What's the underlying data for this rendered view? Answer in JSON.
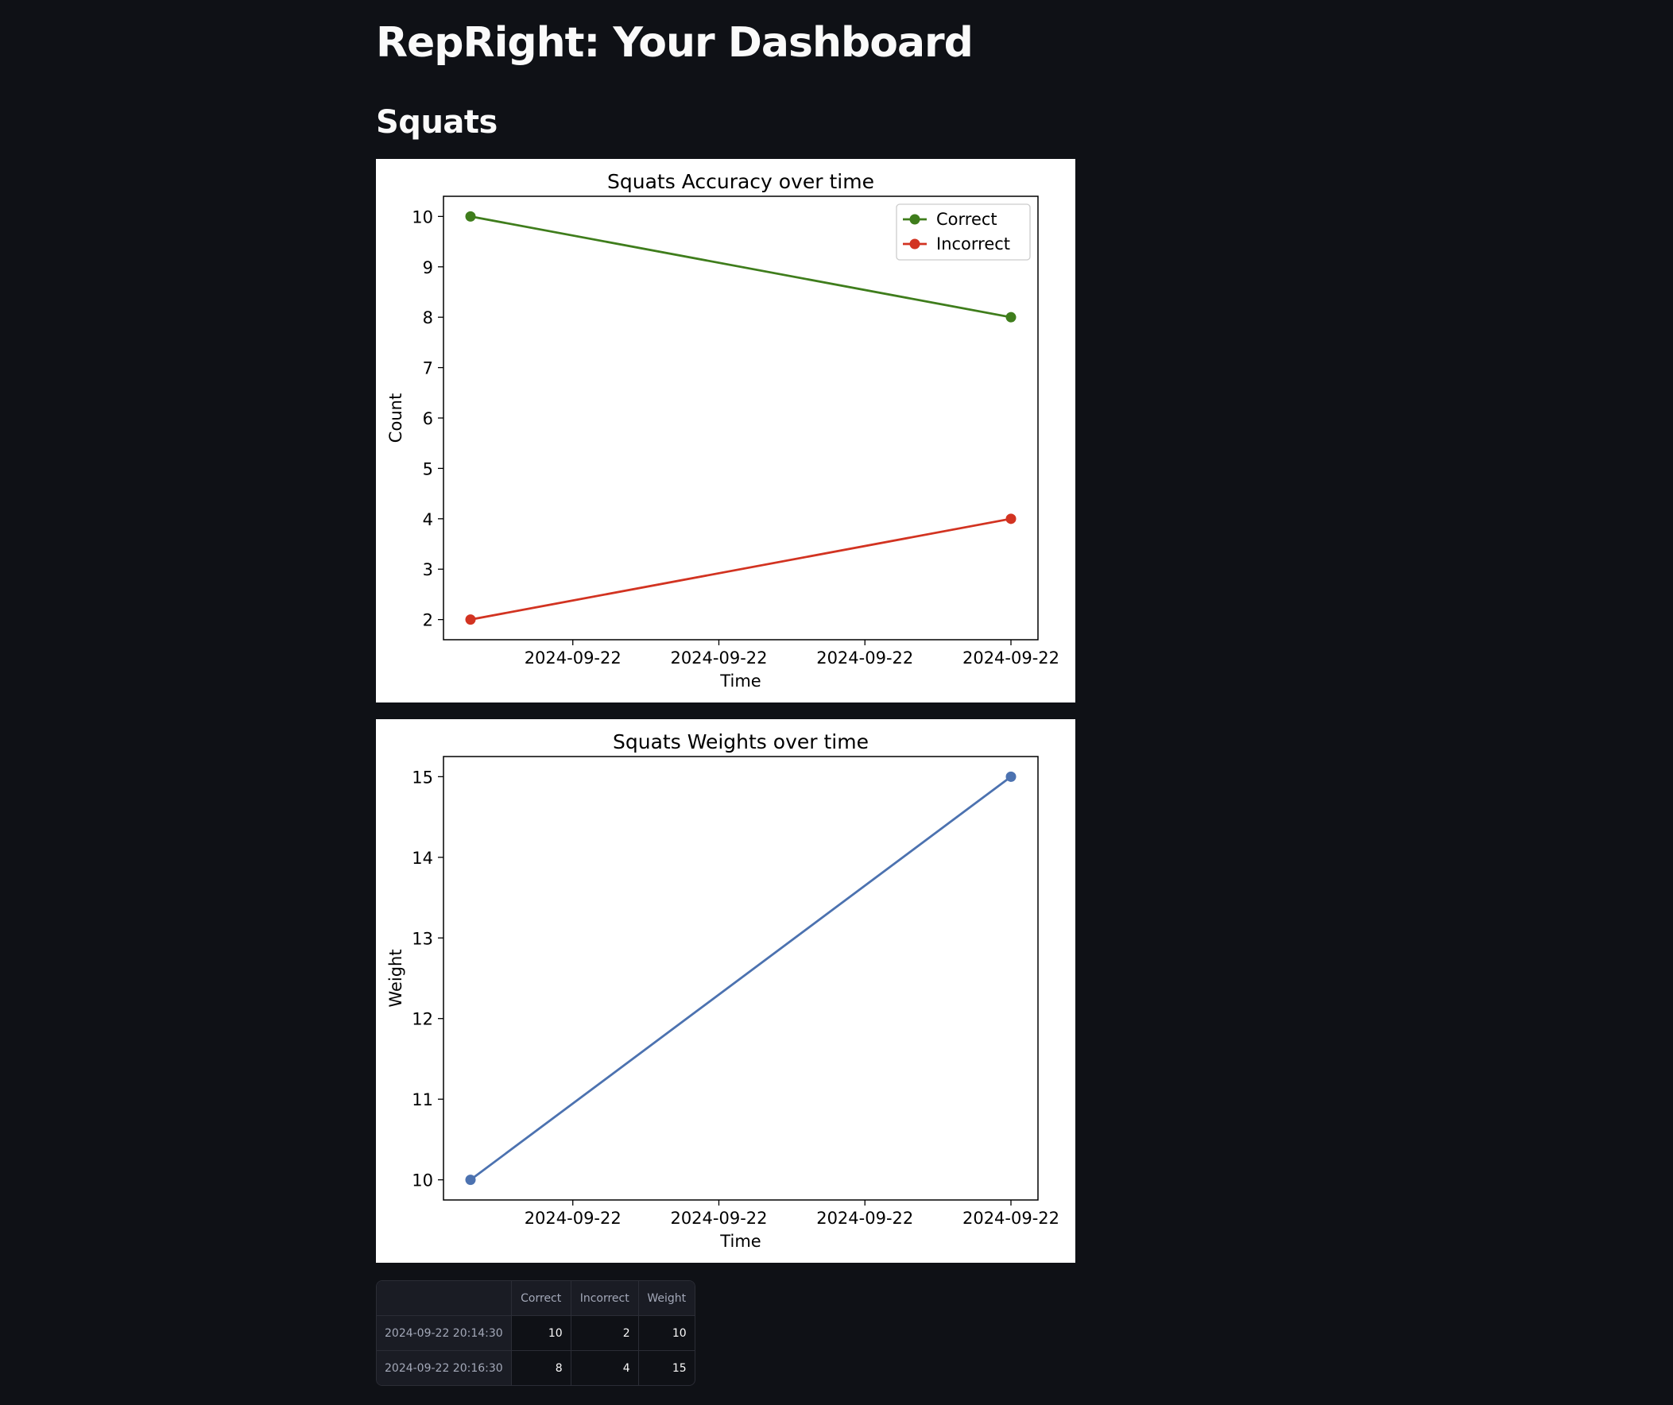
{
  "page": {
    "title": "RepRight: Your Dashboard",
    "section_title": "Squats"
  },
  "chart_data": [
    {
      "type": "line",
      "title": "Squats Accuracy over time",
      "xlabel": "Time",
      "ylabel": "Count",
      "x": [
        "2024-09-22 20:14:30",
        "2024-09-22 20:16:30"
      ],
      "x_tick_labels": [
        "2024-09-22",
        "2024-09-22",
        "2024-09-22",
        "2024-09-22"
      ],
      "y_ticks": [
        2,
        3,
        4,
        5,
        6,
        7,
        8,
        9,
        10
      ],
      "ylim": [
        1.6,
        10.4
      ],
      "grid": false,
      "legend": "top-right",
      "series": [
        {
          "name": "Correct",
          "values": [
            10,
            8
          ],
          "color": "#3f7d1c",
          "marker": "circle"
        },
        {
          "name": "Incorrect",
          "values": [
            2,
            4
          ],
          "color": "#d23321",
          "marker": "circle"
        }
      ]
    },
    {
      "type": "line",
      "title": "Squats Weights over time",
      "xlabel": "Time",
      "ylabel": "Weight",
      "x": [
        "2024-09-22 20:14:30",
        "2024-09-22 20:16:30"
      ],
      "x_tick_labels": [
        "2024-09-22",
        "2024-09-22",
        "2024-09-22",
        "2024-09-22"
      ],
      "y_ticks": [
        10,
        11,
        12,
        13,
        14,
        15
      ],
      "ylim": [
        9.75,
        15.25
      ],
      "grid": false,
      "legend": "none",
      "series": [
        {
          "values": [
            10,
            15
          ],
          "color": "#4c72b0",
          "marker": "circle"
        }
      ]
    }
  ],
  "table": {
    "columns": [
      "",
      "Correct",
      "Incorrect",
      "Weight"
    ],
    "rows": [
      {
        "index": "2024-09-22 20:14:30",
        "correct": "10",
        "incorrect": "2",
        "weight": "10"
      },
      {
        "index": "2024-09-22 20:16:30",
        "correct": "8",
        "incorrect": "4",
        "weight": "15"
      }
    ]
  }
}
